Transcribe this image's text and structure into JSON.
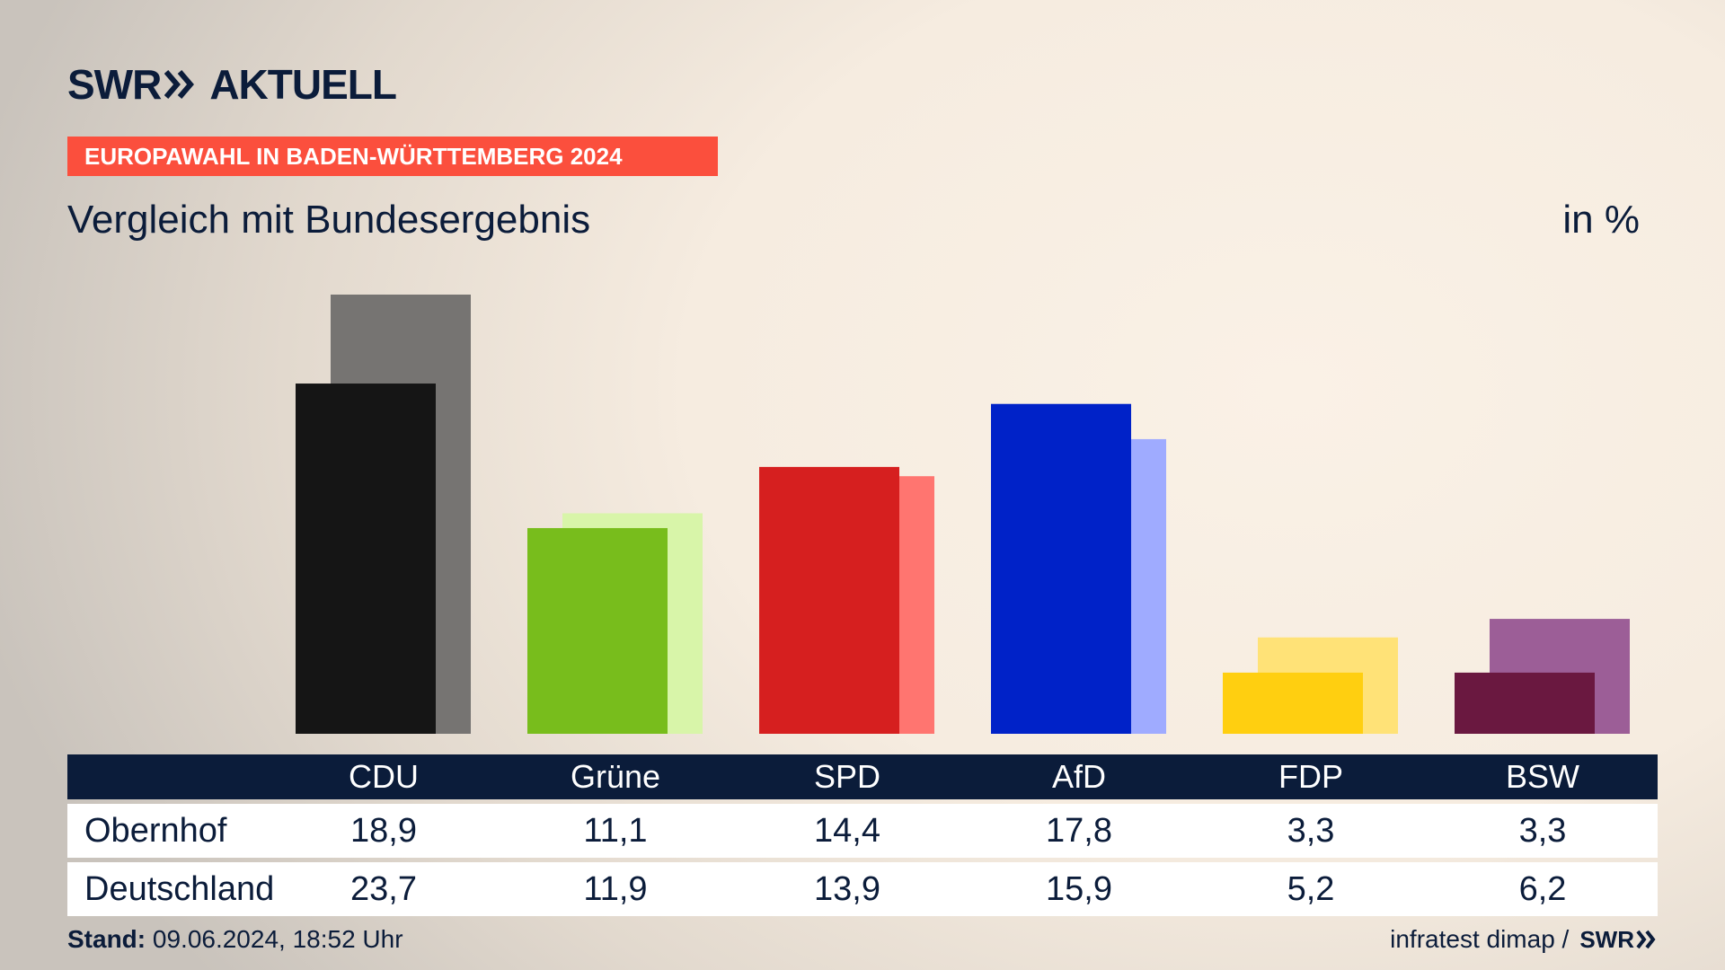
{
  "header": {
    "logo_left": "SWR",
    "logo_right": "AKTUELL",
    "banner": "EUROPAWAHL IN BADEN-WÜRTTEMBERG 2024",
    "subtitle": "Vergleich mit Bundesergebnis",
    "unit": "in %"
  },
  "colors": {
    "brand": "#0b1c3a",
    "banner": "#fb4f3d"
  },
  "chart_data": {
    "type": "bar",
    "categories": [
      "CDU",
      "Grüne",
      "SPD",
      "AfD",
      "FDP",
      "BSW"
    ],
    "series": [
      {
        "name": "Obernhof",
        "values": [
          18.9,
          11.1,
          14.4,
          17.8,
          3.3,
          3.3
        ],
        "colors": [
          "#151515",
          "#78bd1c",
          "#d61f1f",
          "#0022c8",
          "#ffcf10",
          "#6a1840"
        ]
      },
      {
        "name": "Deutschland",
        "values": [
          23.7,
          11.9,
          13.9,
          15.9,
          5.2,
          6.2
        ],
        "colors": [
          "#767472",
          "#d8f5a9",
          "#ff7570",
          "#9fabff",
          "#ffe277",
          "#9c5e97"
        ]
      }
    ],
    "ylim": [
      0,
      23.7
    ],
    "grid": false,
    "legend": "none"
  },
  "table": {
    "rows": [
      {
        "label": "Obernhof",
        "values": [
          "18,9",
          "11,1",
          "14,4",
          "17,8",
          "3,3",
          "3,3"
        ]
      },
      {
        "label": "Deutschland",
        "values": [
          "23,7",
          "11,9",
          "13,9",
          "15,9",
          "5,2",
          "6,2"
        ]
      }
    ]
  },
  "footer": {
    "stand_label": "Stand:",
    "stand_value": " 09.06.2024, 18:52 Uhr",
    "source": "infratest dimap /",
    "source_logo": "SWR"
  }
}
